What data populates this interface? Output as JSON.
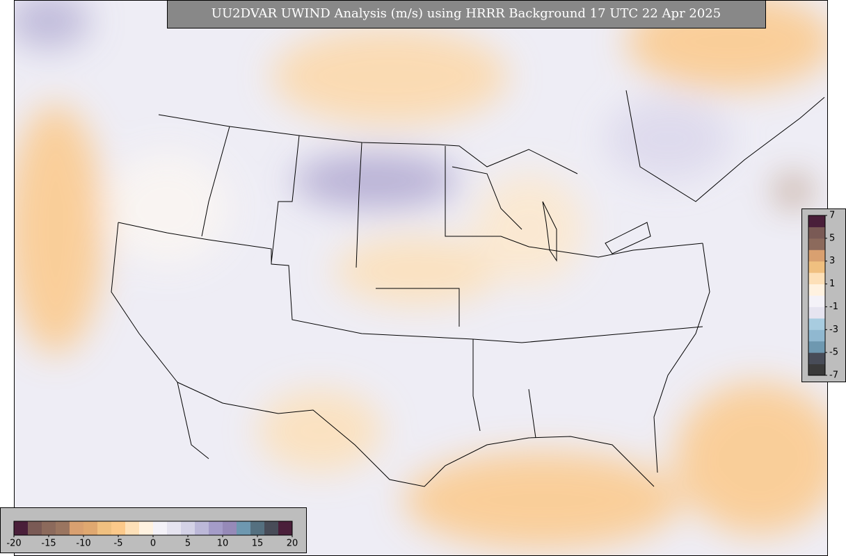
{
  "title": "UU2DVAR UWIND Analysis (m/s) using HRRR Background 17 UTC 22 Apr 2025",
  "colorbars": [
    {
      "orientation": "horizontal",
      "lim": [
        -20,
        20
      ],
      "ticks": [
        -20,
        -15,
        -10,
        -5,
        0,
        5,
        10,
        15,
        20
      ],
      "colors": [
        "#4a1f3a",
        "#7a5a55",
        "#8c6a5c",
        "#9a7560",
        "#d9a070",
        "#e0a870",
        "#f0c080",
        "#fcc98a",
        "#fde0b8",
        "#fff2e0",
        "#f4f2f8",
        "#e6e4f0",
        "#d4d2e6",
        "#bcb8d8",
        "#a49cc8",
        "#968ab8",
        "#6e98b0",
        "#557080",
        "#484c58",
        "#4a1f3a"
      ]
    },
    {
      "orientation": "vertical",
      "lim": [
        -7,
        7
      ],
      "ticks": [
        7,
        5,
        3,
        1,
        -1,
        -3,
        -5,
        -7
      ],
      "colors": [
        "#3a3a3a",
        "#484c58",
        "#6e98b0",
        "#90b8d0",
        "#a8cce0",
        "#e6e4f0",
        "#f4f2f8",
        "#fff2e0",
        "#fde0b8",
        "#f0c080",
        "#d9a070",
        "#8c6a5c",
        "#7a5a55",
        "#4a1f3a"
      ]
    }
  ]
}
